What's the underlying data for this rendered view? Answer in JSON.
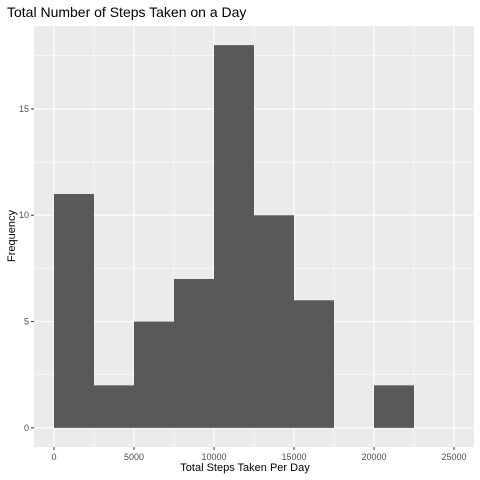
{
  "chart_data": {
    "type": "histogram",
    "title": "Total Number of Steps Taken on a Day",
    "xlabel": "Total Steps Taken Per Day",
    "ylabel": "Frequency",
    "xlim": [
      -1250,
      26250
    ],
    "ylim": [
      -0.9,
      18.9
    ],
    "x_ticks": [
      0,
      5000,
      10000,
      15000,
      20000,
      25000
    ],
    "y_ticks": [
      0,
      5,
      10,
      15
    ],
    "bin_width": 2500,
    "bins": [
      {
        "start": 0,
        "end": 2500,
        "count": 11
      },
      {
        "start": 2500,
        "end": 5000,
        "count": 2
      },
      {
        "start": 5000,
        "end": 7500,
        "count": 5
      },
      {
        "start": 7500,
        "end": 10000,
        "count": 7
      },
      {
        "start": 10000,
        "end": 12500,
        "count": 18
      },
      {
        "start": 12500,
        "end": 15000,
        "count": 10
      },
      {
        "start": 15000,
        "end": 17500,
        "count": 6
      },
      {
        "start": 17500,
        "end": 20000,
        "count": 0
      },
      {
        "start": 20000,
        "end": 22500,
        "count": 2
      }
    ],
    "grid": true,
    "colors": {
      "panel": "#ebebeb",
      "grid": "#ffffff",
      "bar": "#595959"
    }
  }
}
